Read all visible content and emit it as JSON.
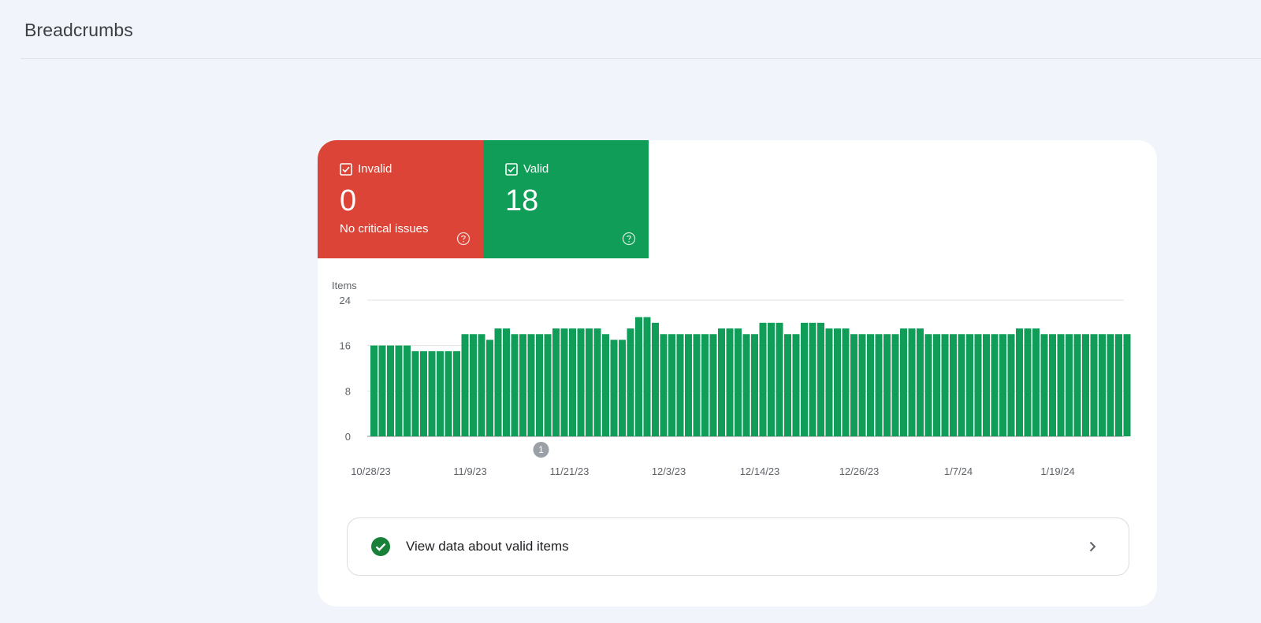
{
  "header": {
    "title": "Breadcrumbs"
  },
  "tiles": {
    "invalid": {
      "label": "Invalid",
      "value": "0",
      "sub": "No critical issues",
      "color": "#db4437",
      "checkbox_icon": "checkbox-checked-icon",
      "help_icon": "help-circle-icon"
    },
    "valid": {
      "label": "Valid",
      "value": "18",
      "color": "#0f9d58",
      "checkbox_icon": "checkbox-checked-icon",
      "help_icon": "help-circle-icon"
    }
  },
  "chart_data": {
    "type": "bar",
    "ylabel": "Items",
    "ylim": [
      0,
      24
    ],
    "yticks": [
      0,
      8,
      16,
      24
    ],
    "grid": true,
    "bar_color": "#0f9d58",
    "x_tick_labels": [
      "10/28/23",
      "11/9/23",
      "11/21/23",
      "12/3/23",
      "12/14/23",
      "12/26/23",
      "1/7/24",
      "1/19/24"
    ],
    "x_tick_positions": [
      0,
      12,
      24,
      36,
      47,
      59,
      71,
      83
    ],
    "annotation": {
      "label": "1",
      "index": 20
    },
    "series": [
      {
        "values": [
          16,
          16,
          16,
          16,
          16,
          15,
          15,
          15,
          15,
          15,
          15,
          18,
          18,
          18,
          17,
          19,
          19,
          18,
          18,
          18,
          18,
          18,
          19,
          19,
          19,
          19,
          19,
          19,
          18,
          17,
          17,
          19,
          21,
          21,
          20,
          18,
          18,
          18,
          18,
          18,
          18,
          18,
          19,
          19,
          19,
          18,
          18,
          20,
          20,
          20,
          18,
          18,
          20,
          20,
          20,
          19,
          19,
          19,
          18,
          18,
          18,
          18,
          18,
          18,
          19,
          19,
          19,
          18,
          18,
          18,
          18,
          18,
          18,
          18,
          18,
          18,
          18,
          18,
          19,
          19,
          19,
          18,
          18,
          18,
          18,
          18,
          18,
          18,
          18,
          18,
          18,
          18
        ]
      }
    ]
  },
  "view_row": {
    "label": "View data about valid items",
    "status_icon": "check-circle-icon",
    "chevron_icon": "chevron-right-icon",
    "status_color": "#188038"
  }
}
